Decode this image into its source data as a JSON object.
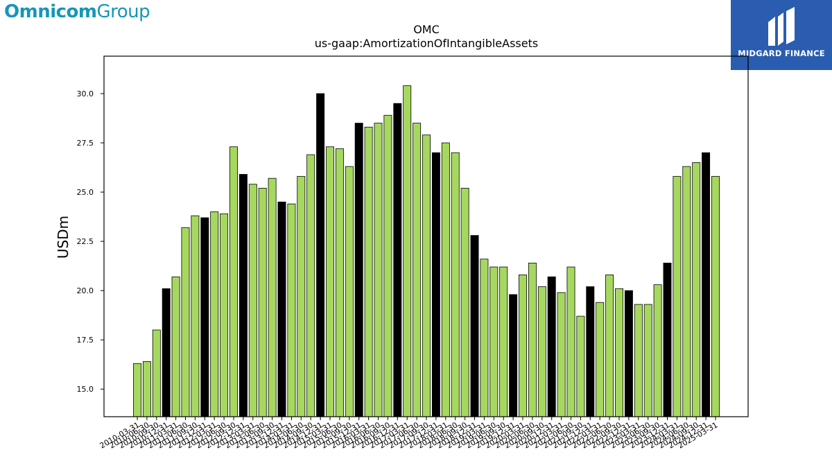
{
  "header": {
    "brand_left_bold": "Omnicom",
    "brand_left_light": "Group",
    "brand_right": "MIDGARD FINANCE"
  },
  "colors": {
    "bar_primary": "#a6d85f",
    "bar_highlight": "#000000",
    "bar_edge": "#000000",
    "brand_left": "#1596b8",
    "brand_right_bg": "#2a5db0"
  },
  "chart_data": {
    "type": "bar",
    "title": "OMC",
    "subtitle": "us-gaap:AmortizationOfIntangibleAssets",
    "xlabel": "",
    "ylabel": "USDm",
    "ylim": [
      13.6,
      31.9
    ],
    "yticks": [
      15.0,
      17.5,
      20.0,
      22.5,
      25.0,
      27.5,
      30.0
    ],
    "grid": false,
    "categories": [
      "2010-03-31",
      "2010-06-30",
      "2010-09-30",
      "2010-12-31",
      "2011-03-31",
      "2011-06-30",
      "2011-09-30",
      "2011-12-31",
      "2012-03-31",
      "2012-06-30",
      "2012-09-30",
      "2012-12-31",
      "2013-03-31",
      "2013-06-30",
      "2013-09-30",
      "2013-12-31",
      "2014-03-31",
      "2014-06-30",
      "2014-09-30",
      "2014-12-31",
      "2015-03-31",
      "2015-06-30",
      "2015-09-30",
      "2015-12-31",
      "2016-03-31",
      "2016-06-30",
      "2016-09-30",
      "2016-12-31",
      "2017-03-31",
      "2017-06-30",
      "2017-09-30",
      "2017-12-31",
      "2018-03-31",
      "2018-06-30",
      "2018-09-30",
      "2018-12-31",
      "2019-03-31",
      "2019-06-30",
      "2019-09-30",
      "2019-12-31",
      "2020-03-31",
      "2020-06-30",
      "2020-09-30",
      "2020-12-31",
      "2021-03-31",
      "2021-06-30",
      "2021-09-30",
      "2021-12-31",
      "2022-03-31",
      "2022-06-30",
      "2022-09-30",
      "2022-12-31",
      "2023-03-31",
      "2023-06-30",
      "2023-09-30",
      "2023-12-31",
      "2024-03-31",
      "2024-06-30",
      "2024-09-30",
      "2024-12-31",
      "2025-03-31"
    ],
    "values": [
      16.3,
      16.4,
      18.0,
      20.1,
      20.7,
      23.2,
      23.8,
      23.7,
      24.0,
      23.9,
      27.3,
      25.9,
      25.4,
      25.2,
      25.7,
      24.5,
      24.4,
      25.8,
      26.9,
      30.0,
      27.3,
      27.2,
      26.3,
      28.5,
      28.3,
      28.5,
      28.9,
      29.5,
      30.4,
      28.5,
      27.9,
      27.0,
      27.5,
      27.0,
      25.2,
      22.8,
      21.6,
      21.2,
      21.2,
      19.8,
      20.8,
      21.4,
      20.2,
      20.7,
      19.9,
      21.2,
      18.7,
      20.2,
      19.4,
      20.8,
      20.1,
      20.0,
      19.3,
      19.3,
      20.3,
      21.4,
      25.8,
      26.3,
      26.5,
      27.0,
      25.8
    ],
    "highlight_every": 4,
    "highlight_offset": 3
  }
}
